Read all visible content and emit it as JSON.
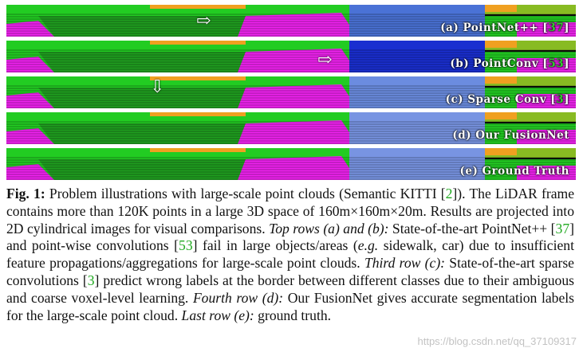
{
  "rows": [
    {
      "id": "a",
      "prefix": "(a) PointNet++ [",
      "ref": "37",
      "suffix": "]",
      "arrow": "right",
      "blue": "#4a72d6"
    },
    {
      "id": "b",
      "prefix": "(b) PointConv [",
      "ref": "53",
      "suffix": "]",
      "arrow": "right",
      "blue": "#1a2fd0"
    },
    {
      "id": "c",
      "prefix": "(c) Sparse Conv [",
      "ref": "3",
      "suffix": "]",
      "arrow": "down",
      "blue": "#6b8ce0"
    },
    {
      "id": "d",
      "prefix": "(d) Our FusionNet",
      "ref": "",
      "suffix": "",
      "arrow": "none",
      "blue": "#7894e2"
    },
    {
      "id": "e",
      "prefix": "(e) Ground Truth",
      "ref": "",
      "suffix": "",
      "arrow": "none",
      "blue": "#7894e2"
    }
  ],
  "arrow_glyphs": {
    "right": "⇨",
    "down": "⇩"
  },
  "colors": {
    "road": "#ee22ee",
    "vegetation": "#22cc22",
    "terrain": "#88bb22",
    "building": "#f0a020",
    "sky_dark": "#0a0a0a",
    "citation": "#22aa22"
  },
  "caption": {
    "fig": "Fig. 1:",
    "t1": " Problem illustrations with large-scale point clouds (Semantic KITTI [",
    "r1": "2",
    "t2": "]). The LiDAR frame contains more than 120K points in a large 3D space of 160m×160m×20m. Results are projected into 2D cylindrical images for visual comparisons. ",
    "e1": "Top rows (a) and (b):",
    "t3": " State-of-the-art PointNet++ [",
    "r2": "37",
    "t4": "] and point-wise convolutions [",
    "r3": "53",
    "t5": "] fail in large objects/areas (",
    "e2": "e.g.",
    "t6": " sidewalk, car) due to insufficient feature propagations/aggregations for large-scale point clouds. ",
    "e3": "Third row (c):",
    "t7": " State-of-the-art sparse convolutions [",
    "r4": "3",
    "t8": "] predict wrong labels at the border between different classes due to their ambiguous and coarse voxel-level learning. ",
    "e4": "Fourth row (d):",
    "t9": " Our FusionNet gives accurate segmentation labels for the large-scale point cloud. ",
    "e5": "Last row (e):",
    "t10": " ground truth."
  },
  "watermark": "https://blog.csdn.net/qq_37109317"
}
